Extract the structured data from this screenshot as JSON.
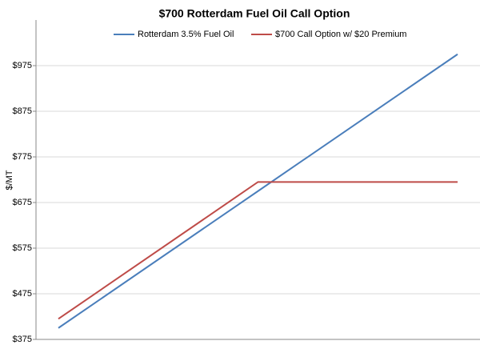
{
  "chart_data": {
    "type": "line",
    "title": "$700 Rotterdam Fuel Oil Call Option",
    "y_label": "$/MT",
    "categories": [
      null,
      null,
      null
    ],
    "series": [
      {
        "name": "Rotterdam 3.5% Fuel Oil",
        "color": "#4a7ebb",
        "values": [
          400,
          700,
          1000
        ]
      },
      {
        "name": "$700 Call Option w/ $20 Premium",
        "color": "#be4b48",
        "values": [
          420,
          720,
          720
        ]
      }
    ],
    "ylim": [
      375,
      1075
    ],
    "yticks": [
      {
        "value": 375,
        "label": "$375"
      },
      {
        "value": 475,
        "label": "$475"
      },
      {
        "value": 575,
        "label": "$575"
      },
      {
        "value": 675,
        "label": "$675"
      },
      {
        "value": 775,
        "label": "$775"
      },
      {
        "value": 875,
        "label": "$875"
      },
      {
        "value": 975,
        "label": "$975"
      }
    ],
    "grid": true,
    "legend": "top"
  }
}
